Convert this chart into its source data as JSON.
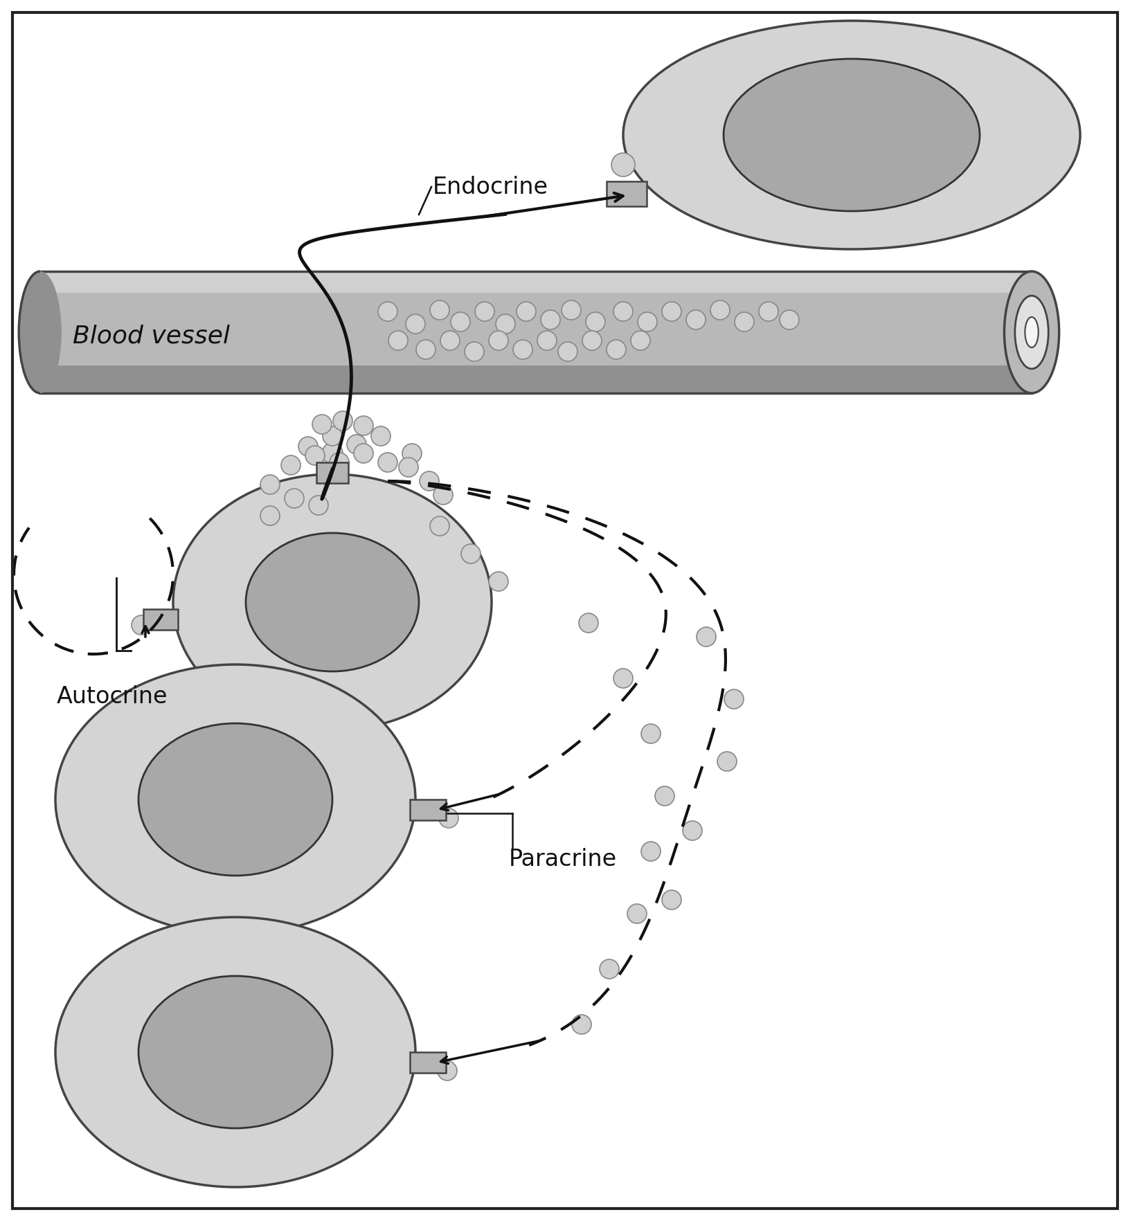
{
  "bg_color": "#ffffff",
  "border_color": "#222222",
  "cell_outer_color": "#d4d4d4",
  "cell_inner_color": "#a8a8a8",
  "cell_edge_color": "#444444",
  "nucleus_edge_color": "#333333",
  "blood_vessel_color_light": "#d0d0d0",
  "blood_vessel_color_mid": "#b8b8b8",
  "blood_vessel_color_dark": "#909090",
  "blood_vessel_edge": "#444444",
  "receptor_color": "#b4b4b4",
  "receptor_edge": "#444444",
  "signal_dot_facecolor": "#d0d0d0",
  "signal_dot_edgecolor": "#888888",
  "arrow_color": "#111111",
  "text_color": "#111111",
  "label_endocrine": "Endocrine",
  "label_blood_vessel": "Blood vessel",
  "label_autocrine": "Autocrine",
  "label_paracrine": "Paracrine",
  "font_size": 24,
  "figw": 16.32,
  "figh": 17.64,
  "dpi": 100,
  "xlim": [
    0,
    1632
  ],
  "ylim": [
    0,
    1764
  ]
}
